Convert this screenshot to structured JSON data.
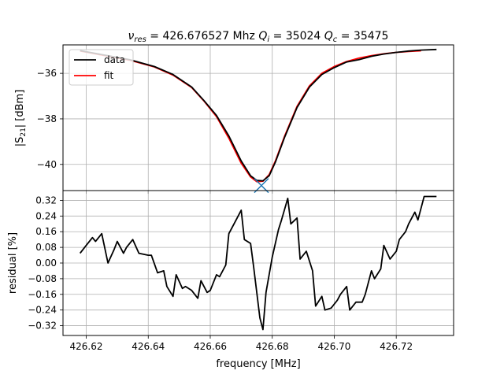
{
  "chart_data": [
    {
      "type": "line",
      "title": "ν_res = 426.676527 Mhz Q_i = 35024 Q_c = 35475",
      "title_parts": {
        "nu_symbol": "ν",
        "nu_sub": "res",
        "nu_value": " = 426.676527 Mhz ",
        "qi_symbol": "Q",
        "qi_sub": "i",
        "qi_value": " = 35024 ",
        "qc_symbol": "Q",
        "qc_sub": "c",
        "qc_value": " = 35475"
      },
      "ylabel": "|S21| [dBm]",
      "ylabel_parts": {
        "pre": "|S",
        "sub": "21",
        "post": "| [dBm]"
      },
      "xlabel": "",
      "xlim": [
        426.6125,
        426.7385
      ],
      "ylim": [
        -41.15,
        -34.75
      ],
      "yticks": [
        -40,
        -38,
        -36
      ],
      "ytick_labels": [
        "−40",
        "−38",
        "−36"
      ],
      "xticks": [
        426.62,
        426.64,
        426.66,
        426.68,
        426.7,
        426.72
      ],
      "grid": true,
      "legend": {
        "placement": "upper-left",
        "entries": [
          {
            "label": "data",
            "color": "#000000"
          },
          {
            "label": "fit",
            "color": "#ff0000"
          }
        ]
      },
      "marker": {
        "symbol": "x",
        "x": 426.6765,
        "y": -40.93,
        "color": "#1f77b4"
      },
      "series": [
        {
          "name": "data",
          "color": "#000000",
          "x": [
            426.618,
            426.626,
            426.634,
            426.642,
            426.648,
            426.654,
            426.658,
            426.662,
            426.666,
            426.67,
            426.673,
            426.675,
            426.677,
            426.679,
            426.681,
            426.684,
            426.688,
            426.692,
            426.696,
            426.7,
            426.704,
            426.708,
            426.712,
            426.716,
            426.72,
            426.724,
            426.728,
            426.733
          ],
          "y": [
            -35.0,
            -35.2,
            -35.4,
            -35.7,
            -36.05,
            -36.6,
            -37.2,
            -37.85,
            -38.75,
            -39.85,
            -40.5,
            -40.7,
            -40.72,
            -40.5,
            -39.9,
            -38.8,
            -37.5,
            -36.6,
            -36.05,
            -35.75,
            -35.5,
            -35.4,
            -35.25,
            -35.15,
            -35.08,
            -35.02,
            -34.98,
            -34.95
          ]
        },
        {
          "name": "fit",
          "color": "#ff0000",
          "x": [
            426.618,
            426.626,
            426.634,
            426.642,
            426.648,
            426.654,
            426.658,
            426.662,
            426.666,
            426.67,
            426.673,
            426.675,
            426.677,
            426.679,
            426.681,
            426.684,
            426.688,
            426.692,
            426.696,
            426.7,
            426.704,
            426.708,
            426.712,
            426.716,
            426.72,
            426.724,
            426.728
          ],
          "y": [
            -35.02,
            -35.22,
            -35.42,
            -35.72,
            -36.08,
            -36.62,
            -37.22,
            -37.9,
            -38.85,
            -39.95,
            -40.55,
            -40.76,
            -40.74,
            -40.45,
            -39.85,
            -38.75,
            -37.45,
            -36.55,
            -36.0,
            -35.7,
            -35.48,
            -35.33,
            -35.22,
            -35.14,
            -35.08,
            -35.04,
            -35.01
          ]
        }
      ]
    },
    {
      "type": "line",
      "title": "",
      "xlabel": "frequency [MHz]",
      "ylabel": "residual [%]",
      "xlim": [
        426.6125,
        426.7385
      ],
      "ylim": [
        -0.37,
        0.37
      ],
      "yticks": [
        -0.32,
        -0.24,
        -0.16,
        -0.08,
        0.0,
        0.08,
        0.16,
        0.24,
        0.32
      ],
      "ytick_labels": [
        "−0.32",
        "−0.24",
        "−0.16",
        "−0.08",
        "0.00",
        "0.08",
        "0.16",
        "0.24",
        "0.32"
      ],
      "xticks": [
        426.62,
        426.64,
        426.66,
        426.68,
        426.7,
        426.72
      ],
      "xtick_labels": [
        "426.62",
        "426.64",
        "426.66",
        "426.68",
        "426.70",
        "426.72"
      ],
      "grid": true,
      "series": [
        {
          "color": "#000000",
          "x": [
            426.618,
            426.62,
            426.622,
            426.623,
            426.625,
            426.627,
            426.629,
            426.63,
            426.632,
            426.633,
            426.635,
            426.637,
            426.64,
            426.641,
            426.643,
            426.645,
            426.646,
            426.648,
            426.649,
            426.651,
            426.652,
            426.654,
            426.656,
            426.657,
            426.659,
            426.66,
            426.662,
            426.663,
            426.665,
            426.666,
            426.668,
            426.67,
            426.671,
            426.673,
            426.674,
            426.676,
            426.677,
            426.678,
            426.68,
            426.682,
            426.683,
            426.685,
            426.686,
            426.688,
            426.689,
            426.691,
            426.693,
            426.694,
            426.696,
            426.697,
            426.699,
            426.701,
            426.702,
            426.704,
            426.705,
            426.707,
            426.709,
            426.71,
            426.712,
            426.713,
            426.715,
            426.716,
            426.718,
            426.72,
            426.721,
            426.723,
            426.724,
            426.726,
            426.727,
            426.729,
            426.73,
            426.732,
            426.733
          ],
          "y": [
            0.05,
            0.09,
            0.13,
            0.11,
            0.15,
            0.0,
            0.07,
            0.11,
            0.05,
            0.08,
            0.12,
            0.05,
            0.04,
            0.04,
            -0.05,
            -0.04,
            -0.12,
            -0.17,
            -0.06,
            -0.13,
            -0.12,
            -0.14,
            -0.18,
            -0.09,
            -0.15,
            -0.14,
            -0.06,
            -0.07,
            -0.01,
            0.15,
            0.21,
            0.27,
            0.12,
            0.1,
            -0.02,
            -0.28,
            -0.34,
            -0.15,
            0.03,
            0.17,
            0.22,
            0.33,
            0.2,
            0.23,
            0.02,
            0.06,
            -0.04,
            -0.22,
            -0.17,
            -0.24,
            -0.23,
            -0.19,
            -0.16,
            -0.12,
            -0.24,
            -0.2,
            -0.2,
            -0.16,
            -0.04,
            -0.08,
            -0.03,
            0.09,
            0.02,
            0.06,
            0.12,
            0.16,
            0.2,
            0.26,
            0.22,
            0.34,
            0.34,
            0.34,
            0.34
          ]
        }
      ]
    }
  ]
}
